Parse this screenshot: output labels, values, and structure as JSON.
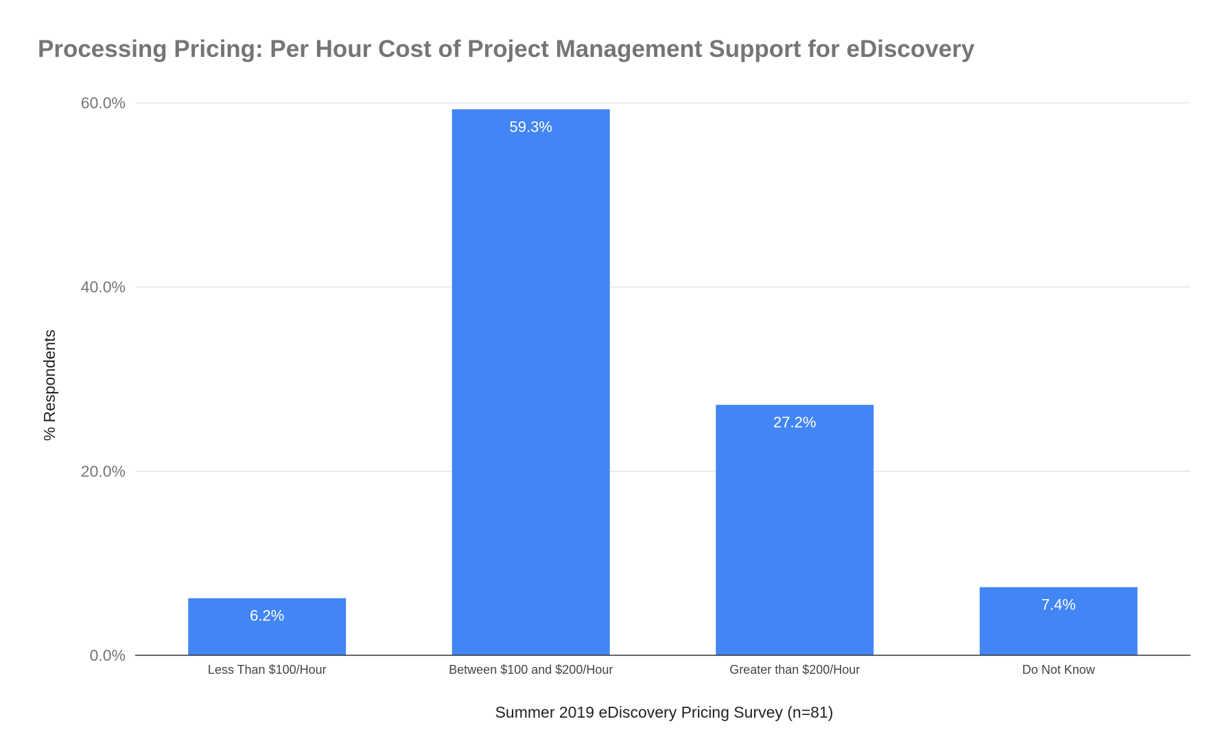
{
  "colors": {
    "bar": "#4285f4",
    "gridline": "#d9d9d9",
    "baseline": "#333333"
  },
  "chart_data": {
    "type": "bar",
    "title": "Processing Pricing: Per Hour Cost of Project Management Support for eDiscovery",
    "xlabel": "Summer 2019 eDiscovery Pricing Survey (n=81)",
    "ylabel": "% Respondents",
    "categories": [
      "Less Than $100/Hour",
      "Between $100 and $200/Hour",
      "Greater than $200/Hour",
      "Do Not Know"
    ],
    "values": [
      6.2,
      59.3,
      27.2,
      7.4
    ],
    "data_labels": [
      "6.2%",
      "59.3%",
      "27.2%",
      "7.4%"
    ],
    "ylim": [
      0,
      60
    ],
    "yticks": [
      0,
      20,
      40,
      60
    ],
    "ytick_labels": [
      "0.0%",
      "20.0%",
      "40.0%",
      "60.0%"
    ],
    "grid": true,
    "legend": "none"
  }
}
